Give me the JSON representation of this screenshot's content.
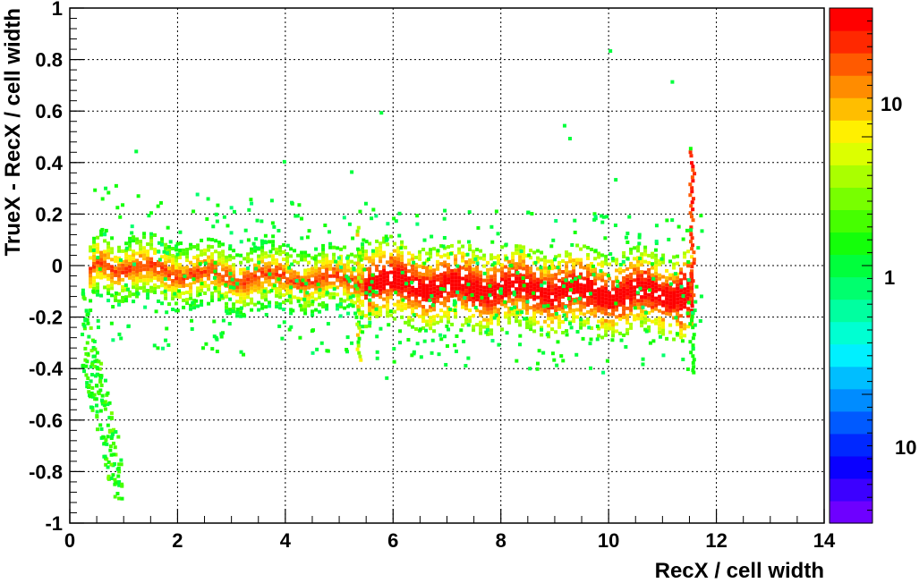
{
  "chart_data": {
    "type": "heatmap",
    "title": "",
    "xlabel": "RecX / cell width",
    "ylabel": "TrueX - RecX / cell width",
    "xlim": [
      0,
      14
    ],
    "ylim": [
      -1,
      1
    ],
    "x_ticks": [
      0,
      2,
      4,
      6,
      8,
      10,
      12,
      14
    ],
    "x_tick_labels": [
      "0",
      "2",
      "4",
      "6",
      "8",
      "10",
      "12",
      "14"
    ],
    "y_ticks": [
      -1,
      -0.8,
      -0.6,
      -0.4,
      -0.2,
      0,
      0.2,
      0.4,
      0.6,
      0.8,
      1
    ],
    "y_tick_labels": [
      "-1",
      "-0.8",
      "-0.6",
      "-0.4",
      "-0.2",
      "0",
      "0.2",
      "0.4",
      "0.6",
      "0.8",
      "1"
    ],
    "grid": true,
    "colorbar": {
      "scale": "log",
      "labels": [
        "10",
        "1",
        "10"
      ],
      "palette": [
        "#6e00ff",
        "#3c00ff",
        "#0a00ff",
        "#0028ff",
        "#005aff",
        "#008cff",
        "#00beff",
        "#00f0ff",
        "#00ffd2",
        "#00ffa0",
        "#00ff6e",
        "#00ff3c",
        "#14ff0a",
        "#46ff00",
        "#78ff00",
        "#aaff00",
        "#dcff00",
        "#fff000",
        "#ffbe00",
        "#ff8c00",
        "#ff5a00",
        "#ff2800",
        "#ff0000"
      ]
    },
    "density_trend": [
      {
        "x": 0.3,
        "y": -0.05
      },
      {
        "x": 0.5,
        "y": 0.02
      },
      {
        "x": 1.0,
        "y": 0.0
      },
      {
        "x": 2.0,
        "y": -0.02
      },
      {
        "x": 3.0,
        "y": -0.04
      },
      {
        "x": 4.0,
        "y": -0.04
      },
      {
        "x": 5.0,
        "y": -0.05
      },
      {
        "x": 5.5,
        "y": -0.05
      },
      {
        "x": 6.0,
        "y": -0.06
      },
      {
        "x": 7.0,
        "y": -0.08
      },
      {
        "x": 8.0,
        "y": -0.08
      },
      {
        "x": 9.0,
        "y": -0.09
      },
      {
        "x": 10.0,
        "y": -0.1
      },
      {
        "x": 11.0,
        "y": -0.1
      },
      {
        "x": 11.5,
        "y": -0.1
      }
    ]
  }
}
